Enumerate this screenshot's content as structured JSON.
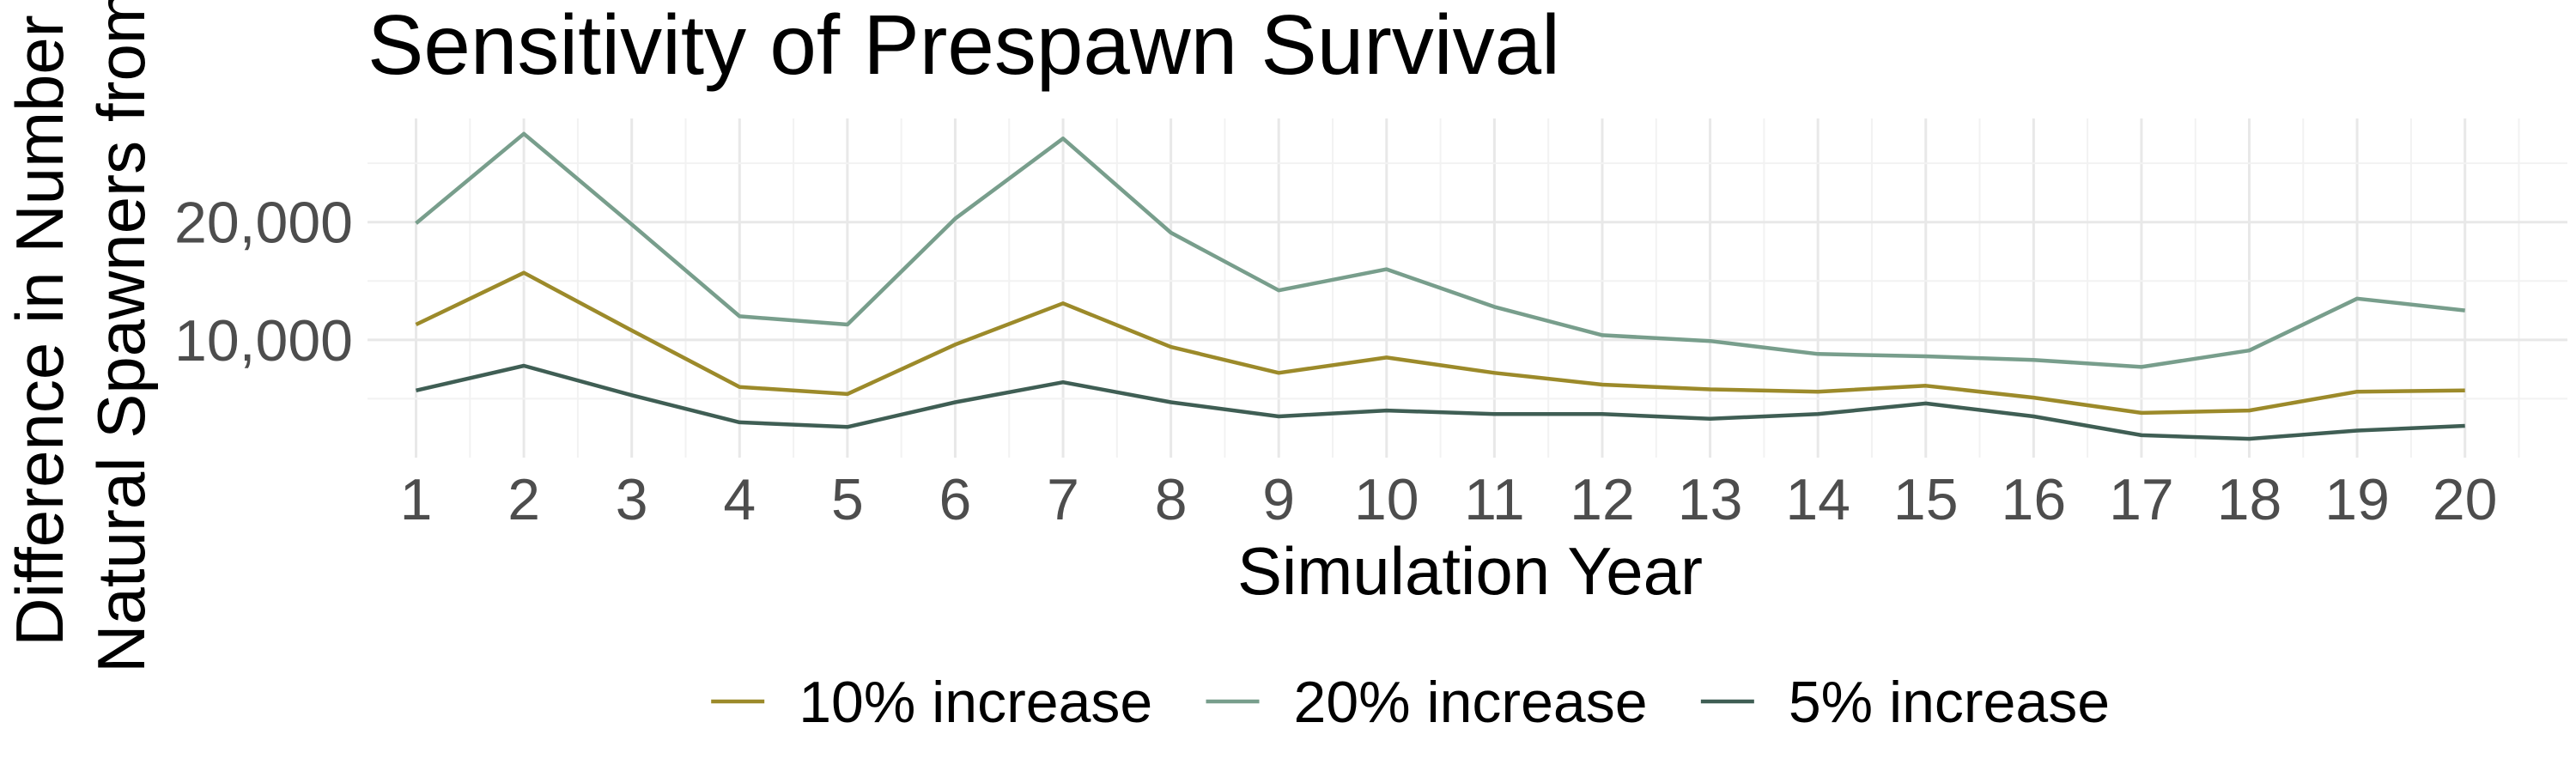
{
  "chart_data": {
    "type": "line",
    "title": "Sensitivity of Prespawn Survival",
    "xlabel": "Simulation Year",
    "ylabel_lines": [
      "Difference in Number",
      "Natural Spawners from"
    ],
    "x": [
      1,
      2,
      3,
      4,
      5,
      6,
      7,
      8,
      9,
      10,
      11,
      12,
      13,
      14,
      15,
      16,
      17,
      18,
      19,
      20
    ],
    "x_tick_labels": [
      "1",
      "2",
      "3",
      "4",
      "5",
      "6",
      "7",
      "8",
      "9",
      "10",
      "11",
      "12",
      "13",
      "14",
      "15",
      "16",
      "17",
      "18",
      "19",
      "20"
    ],
    "xlim": [
      0.55,
      20.95
    ],
    "ylim": [
      0,
      28800
    ],
    "y_ticks": [
      10000,
      20000
    ],
    "y_tick_labels": [
      "10,000",
      "20,000"
    ],
    "grid": true,
    "legend_position": "bottom",
    "series": [
      {
        "name": "10% increase",
        "color": "#9c8a2a",
        "values": [
          11300,
          15700,
          10800,
          6000,
          5400,
          9600,
          13100,
          9400,
          7200,
          8500,
          7200,
          6200,
          5800,
          5600,
          6100,
          5100,
          3800,
          4000,
          5600,
          5700
        ]
      },
      {
        "name": "20% increase",
        "color": "#789e8c",
        "values": [
          19900,
          27500,
          19800,
          12000,
          11300,
          20300,
          27100,
          19100,
          14200,
          16000,
          12800,
          10400,
          9900,
          8800,
          8600,
          8300,
          7700,
          9100,
          13500,
          12500
        ]
      },
      {
        "name": "5% increase",
        "color": "#3f5e54",
        "values": [
          5700,
          7800,
          5300,
          3000,
          2600,
          4700,
          6400,
          4700,
          3500,
          4000,
          3700,
          3700,
          3300,
          3700,
          4600,
          3500,
          1900,
          1600,
          2300,
          2700
        ]
      }
    ]
  }
}
